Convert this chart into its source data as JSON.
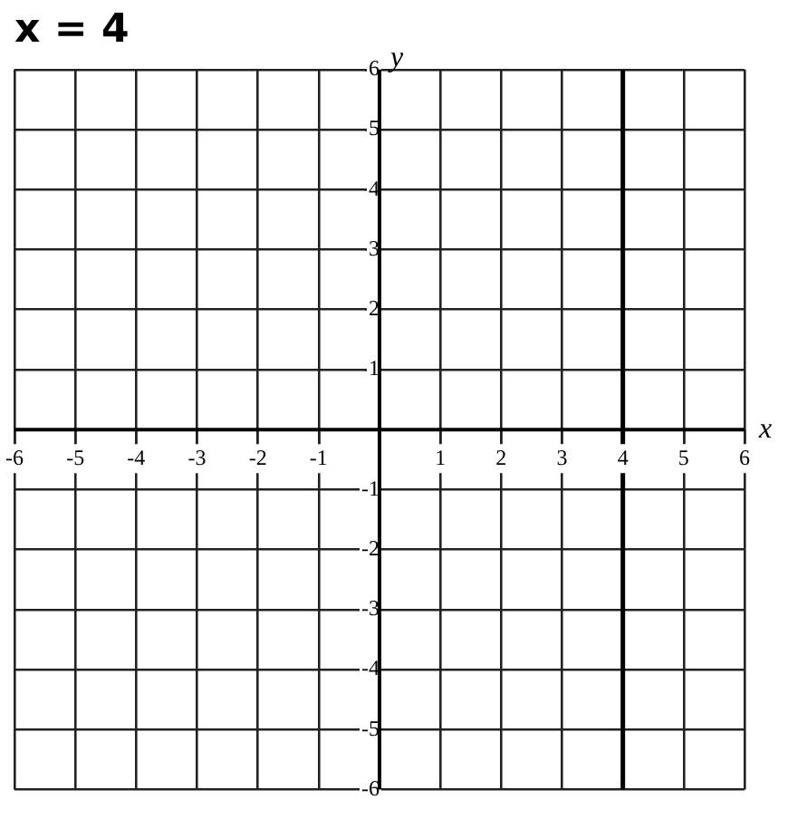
{
  "chart_data": {
    "type": "line",
    "title": "x = 4",
    "xlabel": "x",
    "ylabel": "y",
    "x": [
      4,
      4
    ],
    "values": [
      -6,
      6
    ],
    "color": "#000000",
    "xlim": [
      -6,
      6
    ],
    "ylim": [
      -6,
      6
    ],
    "xticks": [
      -6,
      -5,
      -4,
      -3,
      -2,
      -1,
      {
        "value": 0,
        "label": null
      },
      1,
      2,
      3,
      4,
      5,
      6
    ],
    "yticks": [
      -6,
      -5,
      -4,
      -3,
      -2,
      -1,
      {
        "value": 0,
        "label": null
      },
      1,
      2,
      3,
      4,
      5,
      6
    ],
    "grid": true,
    "marker": "none",
    "line_style": "solid"
  }
}
